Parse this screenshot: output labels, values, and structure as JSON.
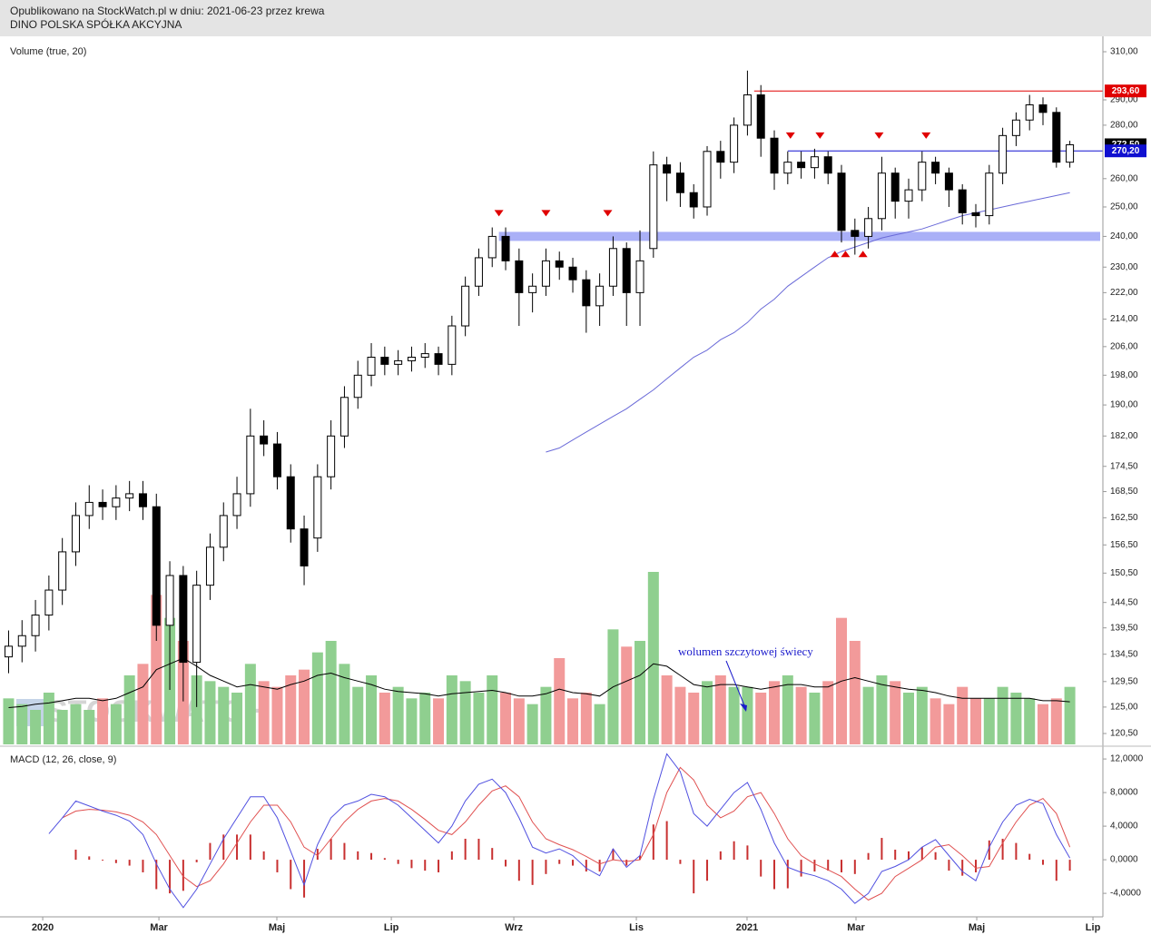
{
  "header": {
    "line1": "Opublikowano na StockWatch.pl w dniu: 2021-06-23 przez krewa",
    "line2": "DINO POLSKA SPÓŁKA AKCYJNA"
  },
  "chart_data": [
    {
      "type": "candlestick",
      "log_y": true,
      "watermark": "STOCKWATCH",
      "xlim": [
        -0.64,
        81.46
      ],
      "ylim": [
        118.7,
        316.7
      ],
      "yticks": [
        {
          "value": 310,
          "label": "310,00"
        },
        {
          "value": 290,
          "label": "290,00"
        },
        {
          "value": 280,
          "label": "280,00"
        },
        {
          "value": 260,
          "label": "260,00"
        },
        {
          "value": 250,
          "label": "250,00"
        },
        {
          "value": 240,
          "label": "240,00"
        },
        {
          "value": 230,
          "label": "230,00"
        },
        {
          "value": 222,
          "label": "222,00"
        },
        {
          "value": 214,
          "label": "214,00"
        },
        {
          "value": 206,
          "label": "206,00"
        },
        {
          "value": 198,
          "label": "198,00"
        },
        {
          "value": 190,
          "label": "190,00"
        },
        {
          "value": 182,
          "label": "182,00"
        },
        {
          "value": 174.5,
          "label": "174,50"
        },
        {
          "value": 168.5,
          "label": "168,50"
        },
        {
          "value": 162.5,
          "label": "162,50"
        },
        {
          "value": 156.5,
          "label": "156,50"
        },
        {
          "value": 150.5,
          "label": "150,50"
        },
        {
          "value": 144.5,
          "label": "144,50"
        },
        {
          "value": 139.5,
          "label": "139,50"
        },
        {
          "value": 134.5,
          "label": "134,50"
        },
        {
          "value": 129.5,
          "label": "129,50"
        },
        {
          "value": 125,
          "label": "125,00"
        },
        {
          "value": 120.5,
          "label": "120,50"
        }
      ],
      "color": "#000000",
      "open": [
        134,
        136,
        138,
        142,
        147,
        155,
        163,
        166,
        165,
        167,
        168,
        165,
        140,
        150,
        133,
        148,
        156,
        163,
        168,
        182,
        180,
        172,
        160,
        158,
        172,
        182,
        192,
        198,
        203,
        201,
        202,
        203,
        204,
        201,
        212,
        224,
        233,
        240,
        232,
        222,
        224,
        232,
        230,
        226,
        218,
        224,
        236,
        222,
        236,
        265,
        262,
        255,
        250,
        270,
        266,
        280,
        292,
        275,
        262,
        266,
        264,
        268,
        262,
        242,
        240,
        246,
        262,
        252,
        256,
        266,
        262,
        256,
        248,
        247,
        262,
        276,
        282,
        288,
        285,
        266
      ],
      "high": [
        139,
        141,
        145,
        150,
        158,
        166,
        170,
        169,
        170,
        171,
        171,
        168,
        153,
        152,
        151,
        159,
        166,
        172,
        189,
        186,
        183,
        175,
        163,
        175,
        186,
        195,
        202,
        207,
        206,
        205,
        206,
        207,
        206,
        215,
        227,
        236,
        243,
        243,
        236,
        228,
        236,
        235,
        233,
        229,
        228,
        240,
        238,
        242,
        270,
        268,
        266,
        258,
        272,
        274,
        283,
        302,
        296,
        278,
        270,
        270,
        271,
        270,
        265,
        246,
        250,
        268,
        264,
        260,
        270,
        268,
        264,
        258,
        251,
        265,
        279,
        285,
        292,
        291,
        287,
        274
      ],
      "low": [
        131,
        133,
        135,
        139,
        144,
        152,
        160,
        162,
        162,
        164,
        162,
        137,
        128,
        126,
        125,
        145,
        153,
        160,
        165,
        177,
        169,
        157,
        148,
        155,
        169,
        179,
        189,
        195,
        198,
        198,
        199,
        200,
        198,
        198,
        209,
        221,
        230,
        229,
        212,
        216,
        221,
        226,
        222,
        210,
        212,
        221,
        212,
        212,
        233,
        252,
        250,
        246,
        247,
        260,
        262,
        276,
        268,
        256,
        258,
        260,
        260,
        258,
        238,
        234,
        236,
        242,
        246,
        246,
        252,
        258,
        250,
        244,
        243,
        244,
        258,
        272,
        278,
        280,
        264,
        264
      ],
      "close": [
        136,
        138,
        142,
        147,
        155,
        163,
        166,
        165,
        167,
        168,
        165,
        140,
        150,
        133,
        148,
        156,
        163,
        168,
        182,
        180,
        172,
        160,
        152,
        172,
        182,
        192,
        198,
        203,
        201,
        202,
        203,
        204,
        201,
        212,
        224,
        233,
        240,
        232,
        222,
        224,
        232,
        230,
        226,
        218,
        224,
        236,
        222,
        232,
        265,
        262,
        255,
        250,
        270,
        266,
        280,
        292,
        275,
        262,
        266,
        264,
        268,
        262,
        242,
        240,
        246,
        262,
        252,
        256,
        266,
        262,
        256,
        248,
        247,
        262,
        276,
        282,
        288,
        285,
        266,
        272.5
      ],
      "moving_average": {
        "color": "#6a6ad8",
        "values": [
          null,
          null,
          null,
          null,
          null,
          null,
          null,
          null,
          null,
          null,
          null,
          null,
          null,
          null,
          null,
          null,
          null,
          null,
          null,
          null,
          null,
          null,
          null,
          null,
          null,
          null,
          null,
          null,
          null,
          null,
          null,
          null,
          null,
          null,
          null,
          null,
          null,
          null,
          null,
          null,
          178,
          179,
          181,
          183,
          185,
          187,
          189,
          191.5,
          194,
          197,
          200,
          203,
          205,
          208,
          210,
          213,
          217,
          220,
          224,
          227,
          230,
          233,
          235,
          236.5,
          238,
          239.5,
          240.5,
          241.5,
          242.5,
          244,
          245.5,
          247,
          248,
          249,
          250,
          251,
          252,
          253,
          254,
          255
        ]
      },
      "band": {
        "value": 240,
        "start": 36.5,
        "color": "#aab0f7"
      },
      "levels": [
        {
          "value": 293.6,
          "label": "293,60",
          "color": "#e00000",
          "start": 55.5,
          "line": true
        },
        {
          "value": 272.5,
          "label": "272,50",
          "color": "#000000",
          "line": false
        },
        {
          "value": 270.2,
          "label": "270,20",
          "color": "#1010d0",
          "start": 58,
          "line": true
        }
      ],
      "markers": {
        "color": "#e00000",
        "points": [
          {
            "x": 36.5,
            "y": 247.7,
            "dir": "down"
          },
          {
            "x": 40.0,
            "y": 247.7,
            "dir": "down"
          },
          {
            "x": 44.6,
            "y": 247.7,
            "dir": "down"
          },
          {
            "x": 58.2,
            "y": 275.8,
            "dir": "down"
          },
          {
            "x": 60.4,
            "y": 275.8,
            "dir": "down"
          },
          {
            "x": 64.8,
            "y": 275.8,
            "dir": "down"
          },
          {
            "x": 68.3,
            "y": 275.8,
            "dir": "down"
          },
          {
            "x": 61.5,
            "y": 234.1,
            "dir": "up"
          },
          {
            "x": 62.3,
            "y": 234.1,
            "dir": "up"
          },
          {
            "x": 63.6,
            "y": 234.1,
            "dir": "up"
          }
        ]
      },
      "annotation": "wolumen szczytowej świecy",
      "volume": {
        "label": "Volume (true, 20)",
        "up_color": "#8fcf8f",
        "down_color": "#f29a9a",
        "ma_color": "#000000",
        "values": [
          40,
          35,
          30,
          45,
          30,
          35,
          30,
          40,
          35,
          60,
          70,
          130,
          110,
          90,
          60,
          55,
          50,
          45,
          70,
          55,
          50,
          60,
          65,
          80,
          90,
          70,
          50,
          60,
          45,
          50,
          40,
          45,
          40,
          60,
          55,
          45,
          60,
          45,
          40,
          35,
          50,
          75,
          40,
          45,
          35,
          100,
          85,
          90,
          150,
          60,
          50,
          45,
          55,
          60,
          50,
          50,
          45,
          55,
          60,
          50,
          45,
          55,
          110,
          90,
          50,
          60,
          55,
          45,
          50,
          40,
          35,
          50,
          40,
          40,
          50,
          45,
          40,
          35,
          40,
          50
        ],
        "ma": [
          32,
          33,
          35,
          36,
          38,
          40,
          40,
          38,
          40,
          45,
          50,
          65,
          70,
          75,
          68,
          60,
          55,
          50,
          52,
          50,
          48,
          52,
          55,
          60,
          62,
          58,
          55,
          52,
          48,
          46,
          45,
          44,
          42,
          44,
          45,
          46,
          47,
          45,
          42,
          42,
          44,
          48,
          45,
          44,
          42,
          50,
          55,
          60,
          70,
          68,
          60,
          52,
          50,
          52,
          52,
          50,
          48,
          50,
          52,
          52,
          50,
          50,
          55,
          58,
          55,
          52,
          50,
          48,
          47,
          45,
          42,
          40,
          40,
          40,
          40,
          40,
          40,
          38,
          38,
          37
        ]
      }
    },
    {
      "type": "macd",
      "label": "MACD (12, 26, close, 9)",
      "xlim": [
        -0.64,
        81.46
      ],
      "ylim": [
        -6.8,
        13.2
      ],
      "yticks": [
        {
          "value": 12,
          "label": "12,0000"
        },
        {
          "value": 8,
          "label": "8,0000"
        },
        {
          "value": 4,
          "label": "4,0000"
        },
        {
          "value": 0,
          "label": "0,0000"
        },
        {
          "value": -4,
          "label": "-4,0000"
        }
      ],
      "xticks": [
        {
          "value": 2.54,
          "label": "2020"
        },
        {
          "value": 11.19,
          "label": "Mar"
        },
        {
          "value": 19.97,
          "label": "Maj"
        },
        {
          "value": 28.49,
          "label": "Lip"
        },
        {
          "value": 37.61,
          "label": "Wrz"
        },
        {
          "value": 46.73,
          "label": "Lis"
        },
        {
          "value": 54.97,
          "label": "2021"
        },
        {
          "value": 63.08,
          "label": "Mar"
        },
        {
          "value": 72.07,
          "label": "Maj"
        },
        {
          "value": 80.72,
          "label": "Lip"
        }
      ],
      "macd": {
        "color": "#5050e0",
        "values": [
          null,
          null,
          null,
          3.1,
          5.0,
          7.0,
          6.4,
          5.8,
          5.3,
          4.6,
          3.0,
          -0.5,
          -3.5,
          -5.7,
          -3.5,
          -0.5,
          2.5,
          5.0,
          7.5,
          7.5,
          5.0,
          1.0,
          -3.0,
          1.8,
          5.0,
          6.5,
          7.0,
          7.8,
          7.5,
          6.5,
          5.0,
          3.5,
          2.0,
          4.0,
          7.0,
          9.0,
          9.6,
          8.0,
          5.0,
          1.5,
          0.8,
          1.3,
          0.5,
          -1.0,
          -1.9,
          1.3,
          -0.9,
          0.5,
          7.2,
          12.6,
          10.5,
          5.5,
          4.0,
          6.0,
          8.0,
          9.2,
          6.0,
          2.0,
          -0.9,
          -1.5,
          -1.9,
          -2.5,
          -3.5,
          -5.2,
          -4.0,
          -1.4,
          -0.8,
          0.0,
          1.5,
          2.4,
          0.5,
          -1.4,
          -2.5,
          1.5,
          4.5,
          6.5,
          7.2,
          6.7,
          3.0,
          0.2
        ]
      },
      "signal": {
        "color": "#e05050",
        "values": [
          null,
          null,
          null,
          null,
          5.0,
          5.8,
          6.0,
          5.9,
          5.7,
          5.3,
          4.5,
          3.0,
          0.5,
          -2.0,
          -3.2,
          -2.5,
          -0.5,
          2.0,
          4.5,
          6.5,
          6.5,
          4.5,
          1.5,
          0.5,
          2.5,
          4.5,
          6.0,
          7.0,
          7.3,
          7.0,
          6.0,
          4.8,
          3.5,
          3.0,
          4.5,
          6.5,
          8.2,
          8.8,
          7.5,
          4.5,
          2.5,
          1.8,
          1.2,
          0.4,
          -0.5,
          0,
          -0.2,
          0,
          3.0,
          8.0,
          11.0,
          9.5,
          6.5,
          5.0,
          5.8,
          7.5,
          8.0,
          5.5,
          2.5,
          0.5,
          -0.5,
          -1.2,
          -2.0,
          -3.5,
          -4.8,
          -4.0,
          -2.0,
          -1.0,
          0.0,
          1.5,
          1.8,
          0.5,
          -1.0,
          -0.8,
          2.0,
          4.5,
          6.5,
          7.3,
          5.5,
          1.5
        ]
      },
      "histogram": {
        "color": "#c83030",
        "values": [
          null,
          null,
          null,
          null,
          0.0,
          1.2,
          0.4,
          -0.1,
          -0.4,
          -0.7,
          -1.5,
          -3.5,
          -4.0,
          -3.7,
          -0.3,
          2.0,
          3.0,
          3.0,
          3.0,
          1.0,
          -1.5,
          -3.5,
          -4.5,
          1.3,
          2.5,
          2.0,
          1.0,
          0.8,
          0.2,
          -0.5,
          -1.0,
          -1.3,
          -1.5,
          1.0,
          2.5,
          2.5,
          1.4,
          -0.8,
          -2.5,
          -3.0,
          -1.7,
          -0.5,
          -0.7,
          -1.4,
          -1.4,
          1.3,
          -0.7,
          0.5,
          4.2,
          4.6,
          -0.5,
          -4.0,
          -2.5,
          1.0,
          2.2,
          1.7,
          -2.0,
          -3.5,
          -3.4,
          -2.0,
          -1.4,
          -1.3,
          -1.5,
          -1.7,
          0.8,
          2.6,
          1.2,
          1.0,
          1.5,
          0.9,
          -1.3,
          -1.9,
          -1.5,
          2.3,
          2.5,
          2.0,
          0.7,
          -0.6,
          -2.5,
          -1.3
        ]
      }
    }
  ]
}
